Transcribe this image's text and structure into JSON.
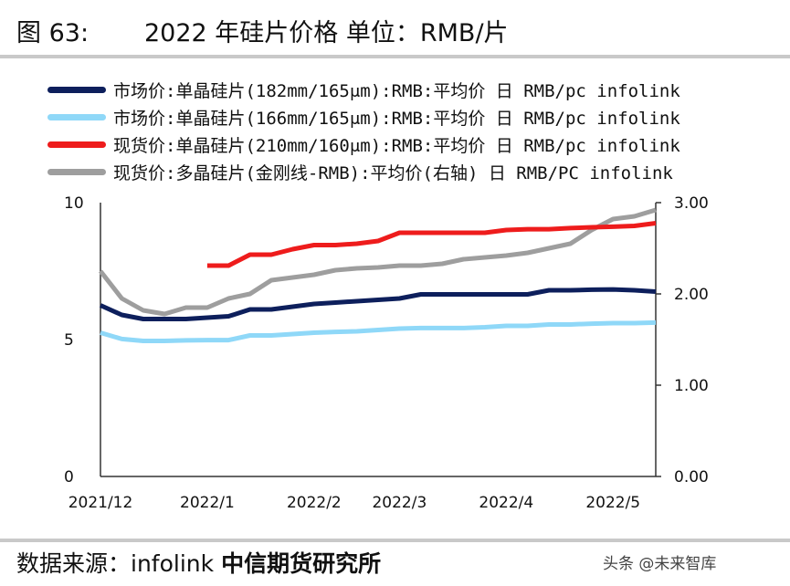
{
  "header": {
    "fig_label": "图 63:",
    "title": "2022 年硅片价格 单位：RMB/片"
  },
  "footer": {
    "source_prefix": "数据来源：infolink",
    "source_org": "中信期货研究所",
    "watermark": "头条 @未来智库"
  },
  "chart_data": {
    "type": "line",
    "x_labels": [
      "2021/12",
      "2022/1",
      "2022/2",
      "2022/3",
      "2022/4",
      "2022/5"
    ],
    "left_axis": {
      "ylim": [
        0,
        10
      ],
      "ticks": [
        "0",
        "5",
        "10"
      ]
    },
    "right_axis": {
      "ylim": [
        0,
        3
      ],
      "ticks": [
        "0.00",
        "1.00",
        "2.00",
        "3.00"
      ]
    },
    "series": [
      {
        "name": "市场价:单晶硅片(182mm/165μm):RMB:平均价 日 RMB/pc infolink",
        "color": "#0d1f5c",
        "axis": "left",
        "values": [
          6.25,
          5.9,
          5.75,
          5.75,
          5.75,
          5.8,
          5.85,
          6.1,
          6.1,
          6.2,
          6.3,
          6.35,
          6.4,
          6.45,
          6.5,
          6.65,
          6.65,
          6.65,
          6.65,
          6.65,
          6.65,
          6.8,
          6.8,
          6.82,
          6.83,
          6.8,
          6.75
        ]
      },
      {
        "name": "市场价:单晶硅片(166mm/165μm):RMB:平均价 日 RMB/pc infolink",
        "color": "#8fd8f8",
        "axis": "left",
        "values": [
          5.25,
          5.02,
          4.95,
          4.95,
          4.97,
          4.98,
          4.98,
          5.15,
          5.15,
          5.2,
          5.25,
          5.28,
          5.3,
          5.35,
          5.4,
          5.42,
          5.42,
          5.42,
          5.45,
          5.5,
          5.5,
          5.55,
          5.55,
          5.58,
          5.6,
          5.6,
          5.62
        ]
      },
      {
        "name": "现货价:单晶硅片(210mm/160μm):RMB:平均价 日 RMB/pc infolink",
        "color": "#ee1c1c",
        "axis": "left",
        "values": [
          null,
          null,
          null,
          null,
          null,
          7.7,
          7.7,
          8.1,
          8.1,
          8.3,
          8.45,
          8.45,
          8.5,
          8.6,
          8.9,
          8.9,
          8.9,
          8.9,
          8.9,
          9.0,
          9.03,
          9.03,
          9.07,
          9.1,
          9.12,
          9.15,
          9.25
        ]
      },
      {
        "name": "现货价:多晶硅片(金刚线-RMB):平均价(右轴) 日 RMB/PC infolink",
        "color": "#9e9e9e",
        "axis": "right",
        "values": [
          2.25,
          1.95,
          1.82,
          1.78,
          1.85,
          1.85,
          1.95,
          2.0,
          2.15,
          2.18,
          2.21,
          2.26,
          2.28,
          2.29,
          2.31,
          2.31,
          2.33,
          2.38,
          2.4,
          2.42,
          2.45,
          2.5,
          2.55,
          2.7,
          2.82,
          2.85,
          2.92
        ]
      }
    ],
    "grid": false,
    "legend_position": "top"
  }
}
